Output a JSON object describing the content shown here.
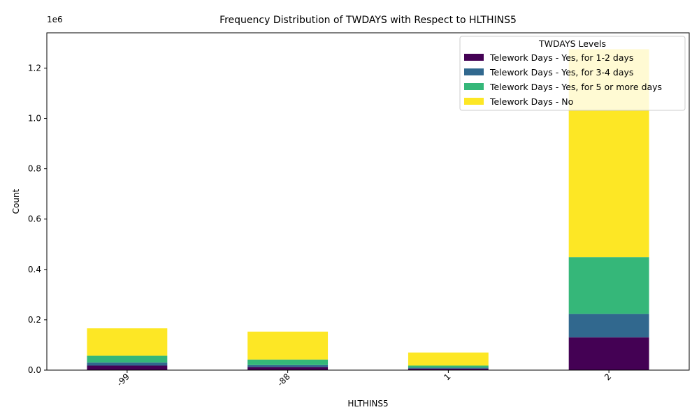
{
  "chart_data": {
    "type": "bar",
    "stacked": true,
    "title": "Frequency Distribution of TWDAYS with Respect to HLTHINS5",
    "xlabel": "HLTHINS5",
    "ylabel": "Count",
    "y_offset_label": "1e6",
    "categories": [
      "-99",
      "-88",
      "1",
      "2"
    ],
    "ylim": [
      0,
      1.34
    ],
    "yticks": [
      0.0,
      0.2,
      0.4,
      0.6,
      0.8,
      1.0,
      1.2
    ],
    "ytick_labels": [
      "0.0",
      "0.2",
      "0.4",
      "0.6",
      "0.8",
      "1.0",
      "1.2"
    ],
    "series": [
      {
        "name": "Telework Days - Yes, for 1-2 days",
        "color": "#440154",
        "values": [
          0.018,
          0.012,
          0.006,
          0.13
        ]
      },
      {
        "name": "Telework Days - Yes, for 3-4 days",
        "color": "#31688e",
        "values": [
          0.012,
          0.008,
          0.004,
          0.093
        ]
      },
      {
        "name": "Telework Days - Yes, for 5 or more days",
        "color": "#35b779",
        "values": [
          0.027,
          0.022,
          0.008,
          0.226
        ]
      },
      {
        "name": "Telework Days - No",
        "color": "#fde725",
        "values": [
          0.109,
          0.111,
          0.052,
          0.826
        ]
      }
    ],
    "legend": {
      "title": "TWDAYS Levels",
      "position": "top-right"
    },
    "grid": false
  }
}
